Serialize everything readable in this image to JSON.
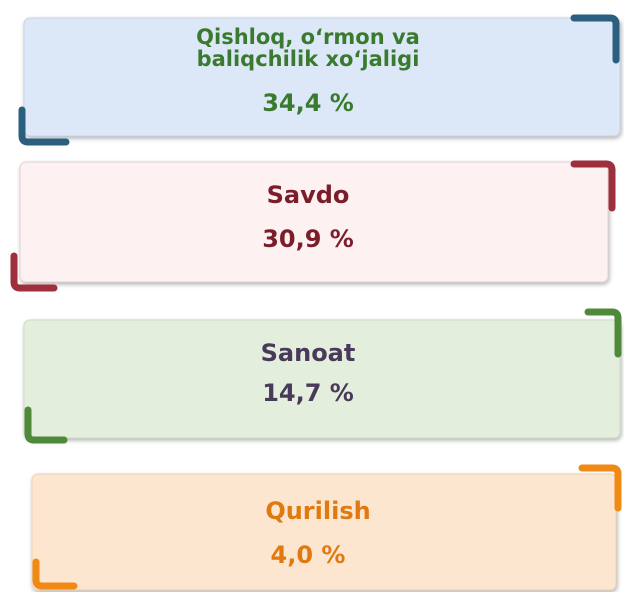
{
  "items": [
    {
      "label_lines": [
        "Qishloq, o‘rmon va",
        "baliqchilik xo‘jaligi"
      ],
      "value": "34,4 %"
    },
    {
      "label_lines": [
        "Savdo"
      ],
      "value": "30,9 %"
    },
    {
      "label_lines": [
        "Sanoat"
      ],
      "value": "14,7 %"
    },
    {
      "label_lines": [
        "Qurilish"
      ],
      "value": "4,0 %"
    }
  ]
}
